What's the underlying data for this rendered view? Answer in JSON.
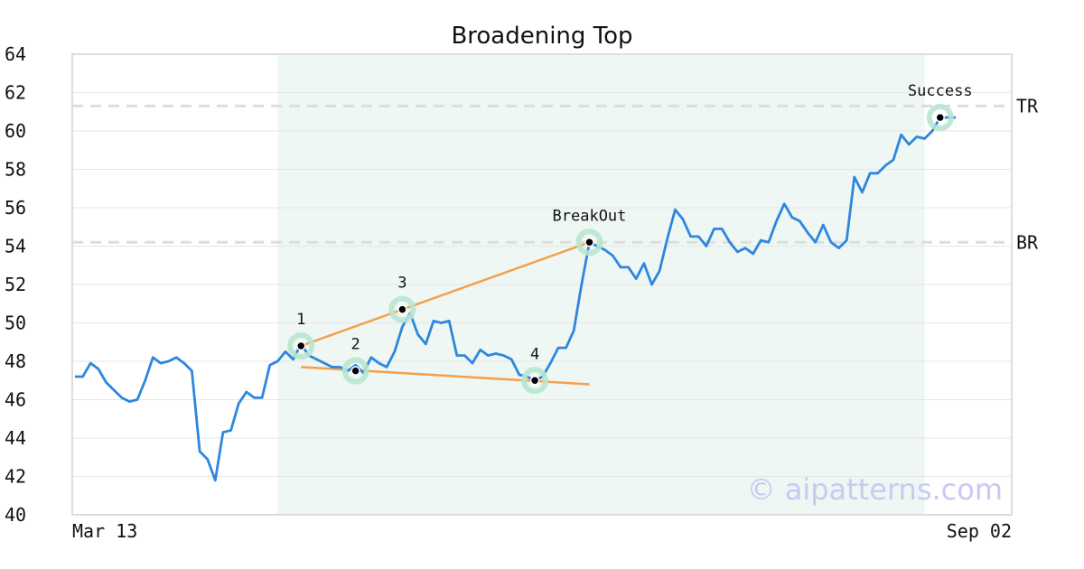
{
  "chart_data": {
    "type": "line",
    "title": "Broadening Top",
    "xlabel": "",
    "ylabel": "",
    "ylim": [
      40,
      64
    ],
    "y_ticks": [
      40,
      42,
      44,
      46,
      48,
      50,
      52,
      54,
      56,
      58,
      60,
      62,
      64
    ],
    "x_tick_labels": [
      "Mar 13",
      "Sep 02"
    ],
    "grid": true,
    "series": [
      {
        "values": [
          47.2,
          47.2,
          47.9,
          47.6,
          46.9,
          46.5,
          46.1,
          45.9,
          46.0,
          47.0,
          48.2,
          47.9,
          48.0,
          48.2,
          47.9,
          47.5,
          43.3,
          42.9,
          41.8,
          44.3,
          44.4,
          45.8,
          46.4,
          46.1,
          46.1,
          47.8,
          48.0,
          48.5,
          48.1,
          48.9,
          48.3,
          48.1,
          47.9,
          47.7,
          47.7,
          47.5,
          47.8,
          47.4,
          48.2,
          47.9,
          47.7,
          48.5,
          49.8,
          50.5,
          49.4,
          48.9,
          50.1,
          50.0,
          50.1,
          48.3,
          48.3,
          47.9,
          48.6,
          48.3,
          48.4,
          48.3,
          48.1,
          47.3,
          47.2,
          47.0,
          47.2,
          47.9,
          48.7,
          48.7,
          49.6,
          52.0,
          54.2,
          54.0,
          53.8,
          53.5,
          52.9,
          52.9,
          52.3,
          53.1,
          52.0,
          52.7,
          54.4,
          55.9,
          55.4,
          54.5,
          54.5,
          54.0,
          54.9,
          54.9,
          54.2,
          53.7,
          53.9,
          53.6,
          54.3,
          54.2,
          55.3,
          56.2,
          55.5,
          55.3,
          54.7,
          54.2,
          55.1,
          54.2,
          53.9,
          54.3,
          57.6,
          56.8,
          57.8,
          57.8,
          58.2,
          58.5,
          59.8,
          59.3,
          59.7,
          59.6,
          60.0,
          60.7,
          60.7,
          60.7
        ]
      }
    ],
    "pattern_lines": [
      {
        "from_point": "1",
        "to_point": "BreakOut",
        "color": "#f4a04a"
      },
      {
        "from_index": 29,
        "from_value": 47.7,
        "to_index": 66,
        "to_value": 46.8,
        "color": "#f4a04a"
      }
    ],
    "points": [
      {
        "label": "1",
        "index": 29,
        "value": 48.8
      },
      {
        "label": "2",
        "index": 36,
        "value": 47.5
      },
      {
        "label": "3",
        "index": 42,
        "value": 50.7
      },
      {
        "label": "4",
        "index": 59,
        "value": 47.0
      },
      {
        "label": "BreakOut",
        "index": 66,
        "value": 54.2
      },
      {
        "label": "Success",
        "index": 111,
        "value": 60.7
      }
    ],
    "levels": [
      {
        "label": "TR",
        "value": 61.3
      },
      {
        "label": "BR",
        "value": 54.2
      }
    ],
    "shaded_range": {
      "from_index": 26,
      "to_index": 109
    },
    "watermark": "© aipatterns.com",
    "colors": {
      "line": "#2e86de",
      "pattern": "#f4a04a",
      "shade": "#eef7f3",
      "marker_ring": "#b8e6cf",
      "level": "#dddddd",
      "grid": "#e6e6e6"
    }
  }
}
